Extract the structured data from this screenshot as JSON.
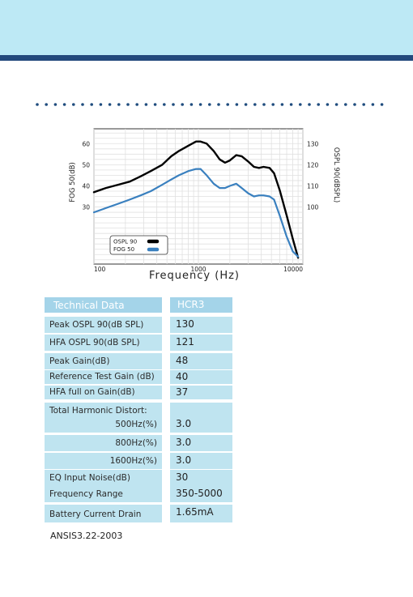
{
  "colors": {
    "top_band": "#bde9f5",
    "top_bar": "#23497c",
    "dots": "#1f4c7e",
    "ospl_line": "#000000",
    "fog_line": "#3a80bf",
    "row_bg": "#bfe4f0",
    "header_bg": "#a4d4e9"
  },
  "chart_data": {
    "type": "line",
    "xlabel": "Frequency (Hz)",
    "ylabel_left": "FOG 50(dB)",
    "ylabel_right": "OSPL 90(dBSPL)",
    "x_scale": "log",
    "x_ticks": [
      "100",
      "1000",
      "10000"
    ],
    "y_left_ticks": [
      "30",
      "40",
      "50",
      "60"
    ],
    "y_right_ticks": [
      "100",
      "110",
      "120",
      "130"
    ],
    "y_left_range": [
      3,
      67
    ],
    "y_right_range": [
      73,
      137
    ],
    "grid": true,
    "legend_position": "bottom-left",
    "series": [
      {
        "name": "OSPL 90",
        "axis": "right",
        "color": "#000000",
        "x": [
          100,
          130,
          170,
          220,
          280,
          350,
          450,
          550,
          650,
          800,
          950,
          1050,
          1200,
          1400,
          1600,
          1800,
          2000,
          2300,
          2600,
          3000,
          3400,
          3800,
          4200,
          4800,
          5300,
          6000,
          7000,
          8000,
          9000
        ],
        "y": [
          107,
          109,
          110.5,
          112,
          114.5,
          117,
          120,
          124,
          126.5,
          129,
          131,
          131,
          130,
          126.5,
          122.5,
          121,
          122,
          124.5,
          124,
          121.5,
          119,
          118.5,
          119,
          118.5,
          116,
          108,
          96,
          85,
          76
        ]
      },
      {
        "name": "FOG 50",
        "axis": "left",
        "color": "#3a80bf",
        "x": [
          100,
          130,
          170,
          220,
          280,
          350,
          450,
          550,
          650,
          800,
          950,
          1050,
          1200,
          1400,
          1600,
          1800,
          2000,
          2300,
          2600,
          3000,
          3400,
          3800,
          4200,
          4800,
          5300,
          6000,
          7000,
          8000,
          9000
        ],
        "y": [
          27.5,
          29.5,
          31.5,
          33.5,
          35.5,
          37.5,
          40.5,
          43,
          45,
          47,
          48,
          48,
          45,
          41,
          39,
          39,
          40,
          41,
          39,
          36.5,
          35,
          35.5,
          35.5,
          35,
          33.5,
          26,
          16,
          9,
          6.5
        ]
      }
    ]
  },
  "table": {
    "header": {
      "label": "Technical Data",
      "value": "HCR3"
    },
    "rows": [
      {
        "label": "Peak OSPL 90(dB SPL)",
        "value": "130"
      },
      {
        "label": "HFA OSPL 90(dB SPL)",
        "value": "121"
      },
      {
        "label": "Peak Gain(dB)",
        "value": "48"
      },
      {
        "label": "Reference Test Gain (dB)",
        "value": "40"
      },
      {
        "label": "HFA  full on Gain(dB)",
        "value": "37"
      },
      {
        "label": "Total Harmonic Distort:",
        "value": ""
      },
      {
        "label": "500Hz(%)",
        "value": "3.0"
      },
      {
        "label": "800Hz(%)",
        "value": "3.0"
      },
      {
        "label": "1600Hz(%)",
        "value": "3.0"
      },
      {
        "label": "EQ Input Noise(dB)",
        "value": "30"
      },
      {
        "label": "Frequency Range",
        "value": "350-5000"
      },
      {
        "label": "Battery Current Drain",
        "value": "1.65mA"
      }
    ]
  },
  "standard_note": "ANSIS3.22-2003"
}
